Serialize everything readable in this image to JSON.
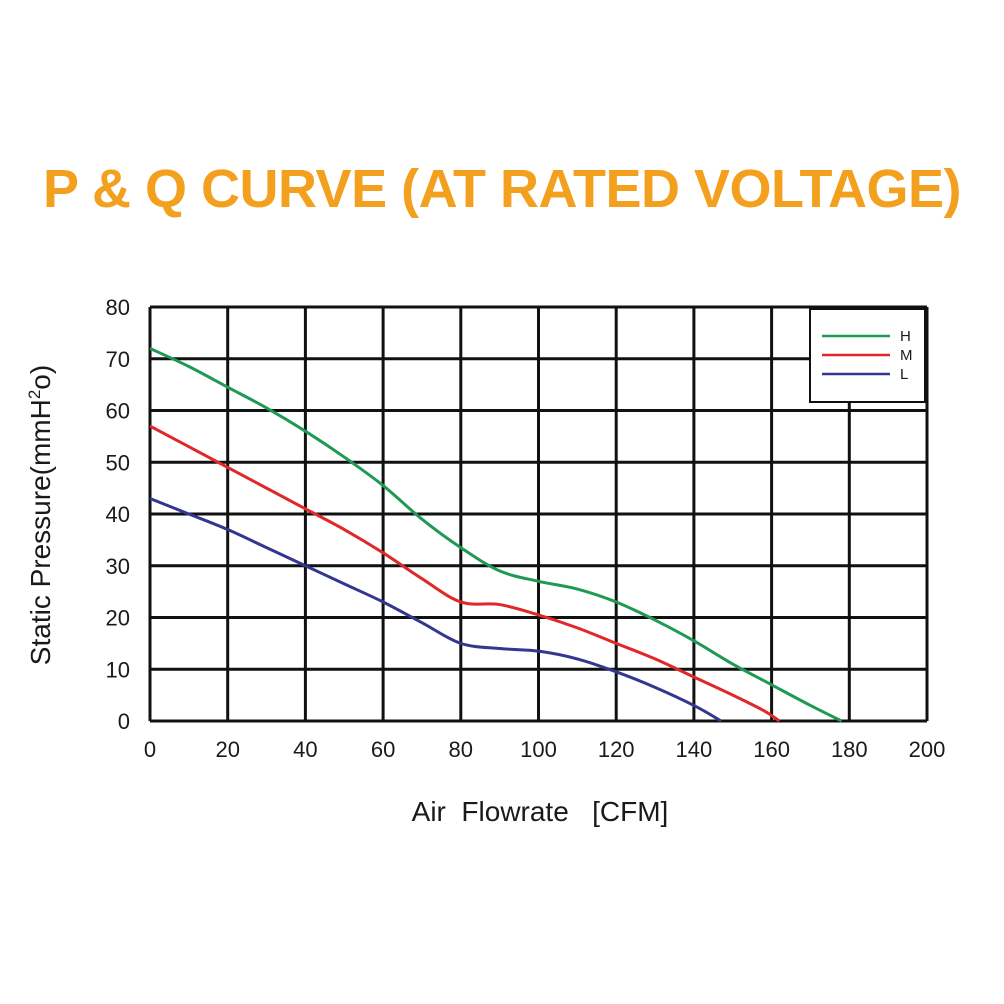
{
  "chart_data": {
    "type": "line",
    "title": "P & Q CURVE (AT RATED VOLTAGE)",
    "xlabel": "Air  Flowrate   [CFM]",
    "ylabel_main": "Static Pressure(mmH",
    "ylabel_sup": "2",
    "ylabel_end": "o)",
    "xlim": [
      0,
      200
    ],
    "ylim": [
      0,
      80
    ],
    "xticks": [
      0,
      20,
      40,
      60,
      80,
      100,
      120,
      140,
      160,
      180,
      200
    ],
    "yticks": [
      0,
      10,
      20,
      30,
      40,
      50,
      60,
      70,
      80
    ],
    "grid": true,
    "legend_position": "top-right",
    "series": [
      {
        "name": "H",
        "color": "#1f9a55",
        "points": [
          [
            0,
            72
          ],
          [
            10,
            68.5
          ],
          [
            20,
            64.5
          ],
          [
            30,
            60.5
          ],
          [
            40,
            56
          ],
          [
            50,
            51
          ],
          [
            60,
            45.5
          ],
          [
            70,
            39
          ],
          [
            80,
            33.5
          ],
          [
            90,
            29
          ],
          [
            100,
            27
          ],
          [
            110,
            25.5
          ],
          [
            120,
            23
          ],
          [
            130,
            19.5
          ],
          [
            140,
            15.5
          ],
          [
            150,
            11
          ],
          [
            160,
            7
          ],
          [
            170,
            3
          ],
          [
            178,
            0
          ]
        ]
      },
      {
        "name": "M",
        "color": "#e0282a",
        "points": [
          [
            0,
            57
          ],
          [
            10,
            53
          ],
          [
            20,
            49
          ],
          [
            30,
            45
          ],
          [
            40,
            41
          ],
          [
            50,
            37
          ],
          [
            60,
            32.5
          ],
          [
            70,
            27.5
          ],
          [
            80,
            23
          ],
          [
            90,
            22.5
          ],
          [
            100,
            20.5
          ],
          [
            110,
            18
          ],
          [
            120,
            15
          ],
          [
            130,
            12
          ],
          [
            140,
            8.5
          ],
          [
            150,
            5
          ],
          [
            158,
            2
          ],
          [
            162,
            0
          ]
        ]
      },
      {
        "name": "L",
        "color": "#33378f",
        "points": [
          [
            0,
            43
          ],
          [
            10,
            40
          ],
          [
            20,
            37
          ],
          [
            30,
            33.5
          ],
          [
            40,
            30
          ],
          [
            50,
            26.5
          ],
          [
            60,
            23
          ],
          [
            70,
            19
          ],
          [
            80,
            15
          ],
          [
            90,
            14
          ],
          [
            100,
            13.5
          ],
          [
            110,
            12
          ],
          [
            120,
            9.5
          ],
          [
            130,
            6.5
          ],
          [
            140,
            3
          ],
          [
            147,
            0
          ]
        ]
      }
    ]
  }
}
